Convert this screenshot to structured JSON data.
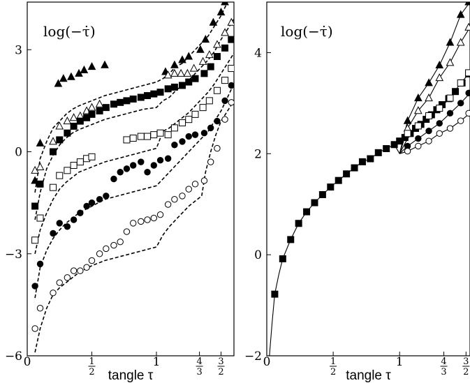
{
  "chart_data": [
    {
      "type": "scatter",
      "ylabel": "log(−τ̇)",
      "xlabel": "tangle τ",
      "xlim": [
        0,
        1.6
      ],
      "ylim": [
        -6,
        4.4
      ],
      "x_ticks": [
        {
          "value": 0,
          "label": "0"
        },
        {
          "value": 0.5,
          "label": "1/2"
        },
        {
          "value": 1,
          "label": "1"
        },
        {
          "value": 1.333,
          "label": "4/3"
        },
        {
          "value": 1.5,
          "label": "3/2"
        }
      ],
      "y_ticks": [
        {
          "value": 3,
          "label": "3"
        },
        {
          "value": 0,
          "label": "0"
        },
        {
          "value": -3,
          "label": "−3"
        },
        {
          "value": -6,
          "label": "−6"
        }
      ],
      "series": [
        {
          "marker": "filled-triangle",
          "x": [
            0.06,
            0.1,
            0.24,
            0.28,
            0.34,
            0.4,
            0.44,
            0.5,
            0.6,
            1.07,
            1.14,
            1.2,
            1.25,
            1.34,
            1.38,
            1.44,
            1.5,
            1.53,
            1.58
          ],
          "y": [
            -0.85,
            0.25,
            2.0,
            2.15,
            2.2,
            2.3,
            2.4,
            2.5,
            2.55,
            2.35,
            2.55,
            2.7,
            2.8,
            3.0,
            3.3,
            3.8,
            4.1,
            4.4,
            4.7
          ]
        },
        {
          "marker": "open-triangle",
          "x": [
            0.06,
            0.1,
            0.2,
            0.25,
            0.31,
            0.36,
            0.41,
            0.46,
            0.5,
            0.56,
            1.09,
            1.14,
            1.19,
            1.24,
            1.29,
            1.36,
            1.41,
            1.47,
            1.53,
            1.58
          ],
          "y": [
            -0.55,
            -0.45,
            0.3,
            0.75,
            0.9,
            1.0,
            1.05,
            1.2,
            1.3,
            1.4,
            2.25,
            2.3,
            2.3,
            2.3,
            2.45,
            2.65,
            2.85,
            3.15,
            3.5,
            3.8
          ]
        },
        {
          "marker": "filled-square",
          "x": [
            0.06,
            0.1,
            0.2,
            0.25,
            0.31,
            0.36,
            0.41,
            0.46,
            0.5,
            0.56,
            0.61,
            0.67,
            0.72,
            0.77,
            0.82,
            0.88,
            0.93,
            0.98,
            1.03,
            1.09,
            1.14,
            1.2,
            1.25,
            1.3,
            1.37,
            1.42,
            1.47,
            1.53,
            1.58
          ],
          "y": [
            -1.6,
            -0.95,
            0.0,
            0.35,
            0.55,
            0.75,
            0.9,
            1.0,
            1.1,
            1.2,
            1.3,
            1.4,
            1.45,
            1.5,
            1.55,
            1.6,
            1.65,
            1.7,
            1.75,
            1.85,
            1.9,
            1.95,
            2.05,
            2.15,
            2.3,
            2.5,
            2.8,
            3.05,
            3.3
          ]
        },
        {
          "marker": "open-square",
          "x": [
            0.06,
            0.1,
            0.2,
            0.25,
            0.31,
            0.36,
            0.41,
            0.46,
            0.5,
            0.77,
            0.82,
            0.88,
            0.93,
            0.98,
            1.03,
            1.09,
            1.14,
            1.2,
            1.25,
            1.3,
            1.36,
            1.41,
            1.47,
            1.53,
            1.58
          ],
          "y": [
            -2.6,
            -1.95,
            -1.05,
            -0.7,
            -0.55,
            -0.4,
            -0.3,
            -0.2,
            -0.15,
            0.35,
            0.4,
            0.45,
            0.45,
            0.5,
            0.55,
            0.5,
            0.7,
            0.85,
            0.95,
            1.1,
            1.3,
            1.5,
            1.8,
            2.1,
            2.45
          ]
        },
        {
          "marker": "filled-circle",
          "x": [
            0.06,
            0.1,
            0.2,
            0.25,
            0.31,
            0.36,
            0.41,
            0.46,
            0.5,
            0.56,
            0.61,
            0.67,
            0.72,
            0.77,
            0.82,
            0.88,
            0.93,
            0.98,
            1.03,
            1.09,
            1.14,
            1.2,
            1.25,
            1.3,
            1.37,
            1.42,
            1.47,
            1.53,
            1.58
          ],
          "y": [
            -3.95,
            -3.3,
            -2.4,
            -2.1,
            -2.2,
            -2.0,
            -1.8,
            -1.6,
            -1.5,
            -1.4,
            -1.3,
            -0.8,
            -0.6,
            -0.5,
            -0.4,
            -0.3,
            -0.6,
            -0.4,
            -0.25,
            -0.2,
            0.2,
            0.3,
            0.45,
            0.5,
            0.55,
            0.7,
            0.9,
            1.5,
            1.95
          ]
        },
        {
          "marker": "open-circle",
          "x": [
            0.06,
            0.1,
            0.2,
            0.25,
            0.31,
            0.36,
            0.41,
            0.46,
            0.5,
            0.56,
            0.61,
            0.67,
            0.72,
            0.77,
            0.82,
            0.88,
            0.93,
            0.98,
            1.03,
            1.09,
            1.14,
            1.2,
            1.25,
            1.3,
            1.37,
            1.42,
            1.47,
            1.53,
            1.58
          ],
          "y": [
            -5.2,
            -4.6,
            -4.15,
            -3.85,
            -3.7,
            -3.5,
            -3.5,
            -3.4,
            -3.2,
            -3.0,
            -2.85,
            -2.75,
            -2.65,
            -2.35,
            -2.1,
            -2.05,
            -2.0,
            -1.95,
            -1.85,
            -1.55,
            -1.4,
            -1.3,
            -1.1,
            -0.95,
            -0.85,
            -0.3,
            0.1,
            0.95,
            1.45
          ]
        }
      ],
      "fits": [
        {
          "style": "dashed",
          "x": [
            0.06,
            0.1,
            0.15,
            0.2,
            0.25,
            0.3,
            0.35,
            0.4,
            0.5,
            0.6,
            0.7,
            0.8,
            0.9,
            1.0,
            1.05,
            1.1,
            1.15,
            1.2,
            1.25,
            1.3,
            1.35,
            1.4,
            1.45,
            1.5,
            1.55,
            1.6
          ],
          "y": [
            -1.2,
            -0.2,
            0.3,
            0.7,
            0.9,
            1.1,
            1.25,
            1.35,
            1.5,
            1.65,
            1.75,
            1.85,
            1.95,
            2.05,
            2.15,
            2.3,
            2.5,
            2.6,
            2.8,
            3.0,
            3.2,
            3.4,
            3.7,
            4.0,
            4.4,
            4.8
          ]
        },
        {
          "style": "dashed",
          "x": [
            0.06,
            0.1,
            0.15,
            0.2,
            0.25,
            0.3,
            0.35,
            0.4,
            0.5,
            0.6,
            0.7,
            0.8,
            0.9,
            1.0,
            1.05,
            1.1,
            1.15,
            1.2,
            1.25,
            1.3,
            1.35,
            1.4,
            1.45,
            1.5,
            1.55,
            1.6
          ],
          "y": [
            -2.0,
            -1.2,
            -0.5,
            -0.1,
            0.2,
            0.4,
            0.55,
            0.65,
            0.8,
            0.95,
            1.05,
            1.15,
            1.25,
            1.3,
            1.5,
            1.6,
            1.8,
            1.95,
            2.1,
            2.3,
            2.5,
            2.7,
            2.95,
            3.3,
            3.6,
            3.9
          ]
        },
        {
          "style": "dashed",
          "x": [
            0.06,
            0.1,
            0.15,
            0.2,
            0.25,
            0.3,
            0.35,
            0.4,
            0.5,
            0.6,
            0.7,
            0.8,
            0.9,
            1.0,
            1.05,
            1.1,
            1.15,
            1.2,
            1.25,
            1.3,
            1.35,
            1.4,
            1.45,
            1.5,
            1.55,
            1.6
          ],
          "y": [
            -3.0,
            -2.3,
            -1.8,
            -1.4,
            -1.1,
            -0.9,
            -0.75,
            -0.6,
            -0.45,
            -0.3,
            -0.2,
            -0.1,
            0.0,
            0.1,
            0.6,
            0.7,
            0.85,
            1.0,
            1.15,
            1.35,
            1.55,
            1.75,
            2.0,
            2.3,
            2.6,
            2.9
          ]
        },
        {
          "style": "dashed",
          "x": [
            0.06,
            0.1,
            0.15,
            0.2,
            0.25,
            0.3,
            0.35,
            0.4,
            0.5,
            0.6,
            0.7,
            0.8,
            0.9,
            1.0,
            1.05,
            1.1,
            1.15,
            1.2,
            1.25,
            1.3,
            1.35,
            1.4,
            1.45,
            1.5,
            1.55,
            1.6
          ],
          "y": [
            -4.3,
            -3.4,
            -2.9,
            -2.55,
            -2.3,
            -2.1,
            -1.95,
            -1.8,
            -1.6,
            -1.4,
            -1.3,
            -1.2,
            -1.1,
            -1.0,
            -0.8,
            -0.6,
            -0.4,
            -0.2,
            0.0,
            0.2,
            0.4,
            0.6,
            0.9,
            1.2,
            1.6,
            2.0
          ]
        },
        {
          "style": "dashed",
          "x": [
            0.06,
            0.1,
            0.15,
            0.2,
            0.25,
            0.3,
            0.35,
            0.4,
            0.5,
            0.6,
            0.7,
            0.8,
            0.9,
            1.0,
            1.05,
            1.1,
            1.15,
            1.2,
            1.25,
            1.3,
            1.35,
            1.38,
            1.42,
            1.46,
            1.5,
            1.55,
            1.6
          ],
          "y": [
            -5.9,
            -5.2,
            -4.6,
            -4.2,
            -4.0,
            -3.85,
            -3.7,
            -3.55,
            -3.35,
            -3.2,
            -3.1,
            -3.0,
            -2.9,
            -2.8,
            -2.45,
            -2.2,
            -2.0,
            -1.8,
            -1.6,
            -1.45,
            -1.3,
            -0.6,
            0.0,
            0.5,
            0.9,
            1.2,
            1.5
          ]
        }
      ]
    },
    {
      "type": "scatter",
      "ylabel": "log(−τ̇)",
      "xlabel": "tangle τ",
      "xlim": [
        0,
        1.53
      ],
      "ylim": [
        -2,
        5
      ],
      "x_ticks": [
        {
          "value": 0,
          "label": "0"
        },
        {
          "value": 0.5,
          "label": "1/2"
        },
        {
          "value": 1,
          "label": "1"
        },
        {
          "value": 1.333,
          "label": "4/3"
        },
        {
          "value": 1.5,
          "label": "3/2"
        }
      ],
      "y_ticks": [
        {
          "value": 4,
          "label": "4"
        },
        {
          "value": 2,
          "label": "2"
        },
        {
          "value": 0,
          "label": "0"
        },
        {
          "value": -2,
          "label": "−2"
        }
      ],
      "series": [
        {
          "marker": "filled-square",
          "x": [
            0.06,
            0.12,
            0.18,
            0.24,
            0.3,
            0.36,
            0.42,
            0.48,
            0.54,
            0.6,
            0.66,
            0.72,
            0.78,
            0.84,
            0.9,
            0.96,
            1.0,
            1.04,
            1.08,
            1.12,
            1.16,
            1.2,
            1.24,
            1.28,
            1.32,
            1.37,
            1.42,
            1.47,
            1.52
          ],
          "y": [
            -0.78,
            -0.08,
            0.3,
            0.62,
            0.85,
            1.03,
            1.19,
            1.34,
            1.47,
            1.6,
            1.72,
            1.84,
            1.9,
            2.02,
            2.1,
            2.18,
            2.25,
            2.32,
            2.4,
            2.5,
            2.58,
            2.68,
            2.77,
            2.87,
            2.97,
            3.09,
            3.23,
            3.4,
            3.58
          ]
        },
        {
          "marker": "filled-triangle",
          "x": [
            1.06,
            1.14,
            1.22,
            1.3,
            1.38,
            1.46,
            1.52
          ],
          "y": [
            2.65,
            3.1,
            3.4,
            3.75,
            4.2,
            4.75,
            5.0
          ]
        },
        {
          "marker": "open-triangle",
          "x": [
            1.06,
            1.14,
            1.22,
            1.3,
            1.38,
            1.46,
            1.52
          ],
          "y": [
            2.5,
            2.85,
            3.1,
            3.5,
            3.8,
            4.2,
            4.5
          ]
        },
        {
          "marker": "open-square",
          "x": [
            1.06,
            1.14,
            1.22,
            1.3,
            1.38,
            1.46,
            1.52
          ],
          "y": [
            2.4,
            2.55,
            2.75,
            2.9,
            3.1,
            3.4,
            3.6
          ]
        },
        {
          "marker": "filled-circle",
          "x": [
            1.06,
            1.14,
            1.22,
            1.3,
            1.38,
            1.46,
            1.52
          ],
          "y": [
            2.15,
            2.3,
            2.45,
            2.6,
            2.8,
            3.0,
            3.2
          ]
        },
        {
          "marker": "open-circle",
          "x": [
            1.06,
            1.14,
            1.22,
            1.3,
            1.38,
            1.46,
            1.52
          ],
          "y": [
            2.05,
            2.15,
            2.25,
            2.4,
            2.5,
            2.65,
            2.8
          ]
        }
      ],
      "fits": [
        {
          "style": "solid",
          "x": [
            0.02,
            0.04,
            0.06,
            0.09,
            0.12,
            0.18,
            0.24,
            0.3,
            0.36,
            0.42,
            0.48,
            0.54,
            0.6,
            0.66,
            0.72,
            0.78,
            0.84,
            0.9,
            0.96,
            1.0
          ],
          "y": [
            -2.0,
            -1.35,
            -0.78,
            -0.4,
            -0.08,
            0.3,
            0.62,
            0.85,
            1.03,
            1.19,
            1.34,
            1.47,
            1.6,
            1.72,
            1.84,
            1.9,
            2.02,
            2.1,
            2.18,
            2.0
          ]
        },
        {
          "style": "solid",
          "x": [
            1.0,
            1.06,
            1.14,
            1.22,
            1.3,
            1.38,
            1.46,
            1.53
          ],
          "y": [
            2.0,
            2.65,
            3.1,
            3.4,
            3.75,
            4.2,
            4.75,
            5.0
          ]
        },
        {
          "style": "solid",
          "x": [
            1.0,
            1.06,
            1.14,
            1.22,
            1.3,
            1.38,
            1.46,
            1.53
          ],
          "y": [
            2.0,
            2.5,
            2.85,
            3.1,
            3.5,
            3.8,
            4.2,
            4.5
          ]
        },
        {
          "style": "solid",
          "x": [
            1.0,
            1.06,
            1.14,
            1.22,
            1.3,
            1.38,
            1.46,
            1.53
          ],
          "y": [
            2.0,
            2.3,
            2.55,
            2.75,
            2.9,
            3.1,
            3.4,
            3.6
          ]
        },
        {
          "style": "solid",
          "x": [
            1.0,
            1.06,
            1.14,
            1.22,
            1.3,
            1.38,
            1.46,
            1.53
          ],
          "y": [
            2.0,
            2.15,
            2.3,
            2.45,
            2.6,
            2.8,
            3.0,
            3.2
          ]
        },
        {
          "style": "solid",
          "x": [
            1.0,
            1.06,
            1.14,
            1.22,
            1.3,
            1.38,
            1.46,
            1.53
          ],
          "y": [
            2.0,
            2.05,
            2.15,
            2.25,
            2.4,
            2.5,
            2.65,
            2.8
          ]
        }
      ]
    }
  ]
}
